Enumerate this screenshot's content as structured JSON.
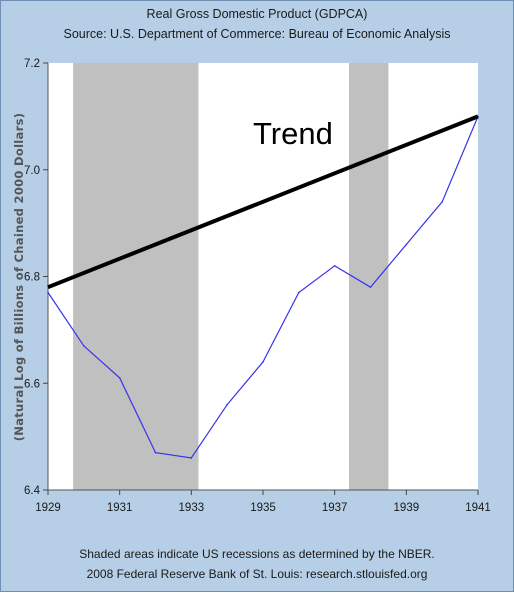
{
  "header": {
    "title": "Real Gross Domestic Product (GDPCA)",
    "source": "Source: U.S. Department of Commerce: Bureau of Economic Analysis"
  },
  "footer": {
    "note": "Shaded areas indicate US recessions as determined by the NBER.",
    "copyright": "2008 Federal Reserve Bank of St. Louis: research.stlouisfed.org"
  },
  "colors": {
    "background": "#b6cfe6",
    "plot": "#ffffff",
    "recession": "#c0c0c0",
    "series": "#3333ee",
    "trend": "#000000"
  },
  "chart_data": {
    "type": "line",
    "title": "Real Gross Domestic Product (GDPCA)",
    "ylabel": "(Natural Log of Billions of Chained 2000 Dollars)",
    "xlabel": "",
    "xlim": [
      1929,
      1941
    ],
    "ylim": [
      6.4,
      7.2
    ],
    "xticks": [
      "1929",
      "1931",
      "1933",
      "1935",
      "1937",
      "1939",
      "1941"
    ],
    "yticks": [
      "6.4",
      "6.6",
      "6.8",
      "7.0",
      "7.2"
    ],
    "grid": false,
    "recessions": [
      {
        "start": 1929.7,
        "end": 1933.2
      },
      {
        "start": 1937.4,
        "end": 1938.5
      }
    ],
    "series": [
      {
        "x": [
          1929,
          1930,
          1931,
          1932,
          1933,
          1934,
          1935,
          1936,
          1937,
          1938,
          1939,
          1940,
          1941
        ],
        "y": [
          6.77,
          6.67,
          6.61,
          6.47,
          6.46,
          6.56,
          6.64,
          6.77,
          6.82,
          6.78,
          6.86,
          6.94,
          7.1
        ]
      }
    ],
    "trend": {
      "label": "Trend",
      "x": [
        1929,
        1941
      ],
      "y": [
        6.78,
        7.1
      ]
    }
  }
}
